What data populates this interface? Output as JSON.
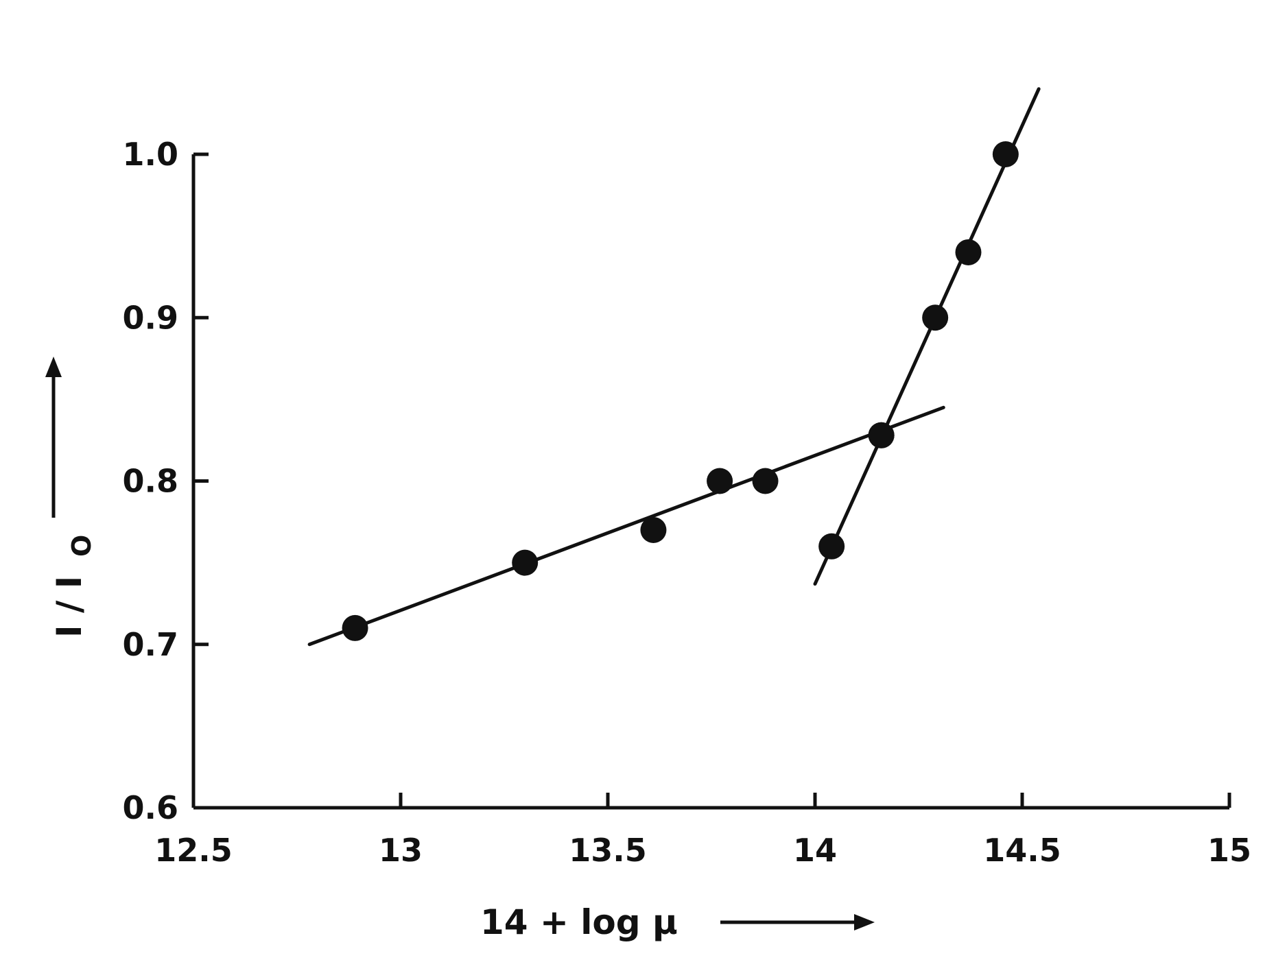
{
  "chart_data": {
    "type": "scatter",
    "xlabel": "14 + log μ",
    "ylabel": "I / I",
    "ylabel_subscript": "O",
    "xlim": [
      12.5,
      15
    ],
    "ylim": [
      0.6,
      1.0
    ],
    "x_ticks": [
      "12.5",
      "13",
      "13.5",
      "14",
      "14.5",
      "15"
    ],
    "y_ticks": [
      "0.6",
      "0.7",
      "0.8",
      "0.9",
      "1.0"
    ],
    "grid": false,
    "series": [
      {
        "points": [
          {
            "x": 12.89,
            "y": 0.71
          },
          {
            "x": 13.3,
            "y": 0.75
          },
          {
            "x": 13.61,
            "y": 0.77
          },
          {
            "x": 13.77,
            "y": 0.8
          },
          {
            "x": 13.88,
            "y": 0.8
          },
          {
            "x": 14.16,
            "y": 0.828
          }
        ]
      },
      {
        "points": [
          {
            "x": 14.04,
            "y": 0.76
          },
          {
            "x": 14.16,
            "y": 0.828
          },
          {
            "x": 14.29,
            "y": 0.9
          },
          {
            "x": 14.37,
            "y": 0.94
          },
          {
            "x": 14.46,
            "y": 1.0
          }
        ]
      }
    ],
    "fit_lines": [
      {
        "x1": 12.78,
        "y1": 0.7,
        "x2": 14.31,
        "y2": 0.845
      },
      {
        "x1": 14.0,
        "y1": 0.737,
        "x2": 14.54,
        "y2": 1.04
      }
    ],
    "axis_color": "#111111",
    "marker_color": "#111111"
  }
}
